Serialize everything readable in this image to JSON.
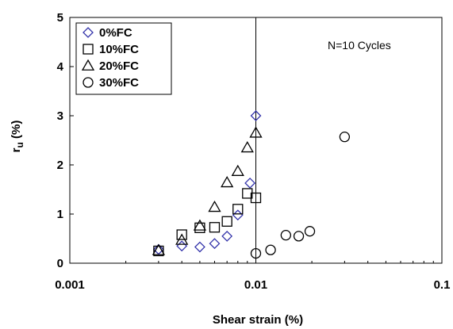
{
  "chart_data": {
    "type": "scatter",
    "xscale": "log",
    "xlim": [
      0.001,
      0.1
    ],
    "ylim": [
      0,
      5
    ],
    "xticks": [
      0.001,
      0.01,
      0.1
    ],
    "xtick_labels": [
      "0.001",
      "0.01",
      "0.1"
    ],
    "yticks": [
      0,
      1,
      2,
      3,
      4,
      5
    ],
    "ytick_labels": [
      "0",
      "1",
      "2",
      "3",
      "4",
      "5"
    ],
    "xlabel": "Shear strain (%)",
    "ylabel_main": "r",
    "ylabel_sub": "u",
    "ylabel_tail": " (%)",
    "grid": false,
    "reference_line_x": 0.01,
    "legend_position": "top-left",
    "annotation": "N=10 Cycles",
    "series": [
      {
        "name": "0%FC",
        "marker": "diamond",
        "color": "#3333aa",
        "x": [
          0.003,
          0.004,
          0.005,
          0.006,
          0.007,
          0.008,
          0.0093,
          0.01
        ],
        "y": [
          0.28,
          0.35,
          0.33,
          0.4,
          0.55,
          0.98,
          1.63,
          3.0
        ]
      },
      {
        "name": "10%FC",
        "marker": "square",
        "color": "#000000",
        "x": [
          0.003,
          0.004,
          0.005,
          0.006,
          0.007,
          0.008,
          0.009,
          0.01
        ],
        "y": [
          0.25,
          0.58,
          0.72,
          0.73,
          0.85,
          1.1,
          1.42,
          1.33
        ]
      },
      {
        "name": "20%FC",
        "marker": "triangle",
        "color": "#000000",
        "x": [
          0.003,
          0.004,
          0.005,
          0.006,
          0.007,
          0.008,
          0.009,
          0.01
        ],
        "y": [
          0.26,
          0.47,
          0.76,
          1.14,
          1.64,
          1.87,
          2.35,
          2.65
        ]
      },
      {
        "name": "30%FC",
        "marker": "circle",
        "color": "#000000",
        "x": [
          0.01,
          0.012,
          0.0145,
          0.017,
          0.0195,
          0.03
        ],
        "y": [
          0.2,
          0.27,
          0.57,
          0.55,
          0.65,
          2.57
        ]
      }
    ]
  }
}
